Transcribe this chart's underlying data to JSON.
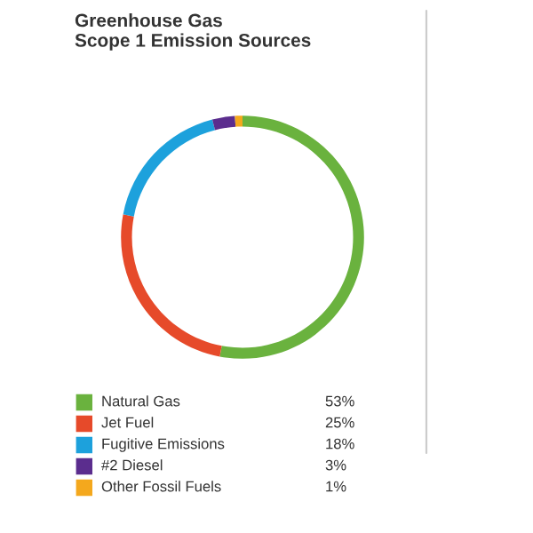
{
  "chart_data": {
    "type": "donut",
    "title": "Greenhouse Gas\nScope 1 Emission Sources",
    "categories": [
      "Natural Gas",
      "Jet Fuel",
      "Fugitive Emissions",
      "#2 Diesel",
      "Other Fossil Fuels"
    ],
    "values": [
      53,
      25,
      18,
      3,
      1
    ],
    "value_labels": [
      "53%",
      "25%",
      "18%",
      "3%",
      "1%"
    ],
    "colors": [
      "#6ab23e",
      "#e64a2a",
      "#1da1dc",
      "#5b2d8e",
      "#f4a81d"
    ],
    "legend": "bottom"
  }
}
